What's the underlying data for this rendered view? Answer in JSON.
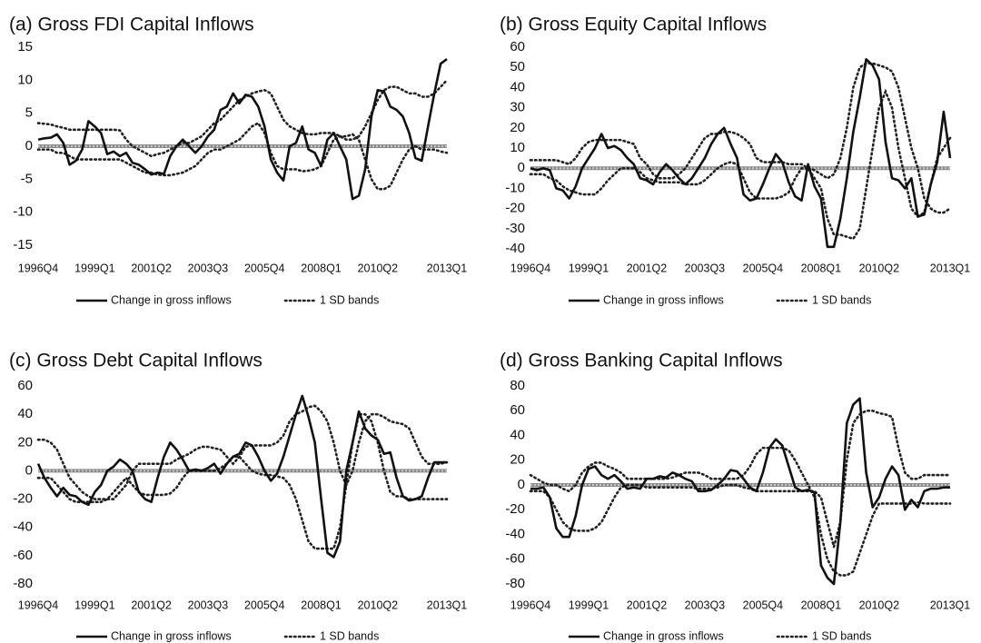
{
  "chart_data": [
    {
      "type": "line",
      "title": "(a) Gross FDI Capital Inflows",
      "categories": [
        "1996Q4",
        null,
        null,
        null,
        null,
        null,
        null,
        null,
        null,
        "1999Q1",
        null,
        null,
        null,
        null,
        null,
        null,
        null,
        null,
        "2001Q2",
        null,
        null,
        null,
        null,
        null,
        null,
        null,
        null,
        "2003Q3",
        null,
        null,
        null,
        null,
        null,
        null,
        null,
        null,
        "2005Q4",
        null,
        null,
        null,
        null,
        null,
        null,
        null,
        null,
        "2008Q1",
        null,
        null,
        null,
        null,
        null,
        null,
        null,
        null,
        "2010Q2",
        null,
        null,
        null,
        null,
        null,
        null,
        null,
        null,
        null,
        null,
        "2013Q1"
      ],
      "ylim": [
        -15,
        15
      ],
      "yticks": [
        -15,
        -10,
        -5,
        0,
        5,
        10,
        15
      ],
      "series": [
        {
          "name": "Change in gross inflows",
          "color": "#111111",
          "values": [
            1,
            1.2,
            1.3,
            1.8,
            0.5,
            -2.8,
            -2.2,
            -0.5,
            3.8,
            3,
            2,
            -1.2,
            -0.8,
            -1.5,
            -1,
            -2.5,
            -2.8,
            -3.5,
            -4.3,
            -4,
            -4.2,
            -1.5,
            0,
            1,
            0,
            -1,
            0,
            1.5,
            2.5,
            5.5,
            6,
            8,
            6.5,
            7.8,
            7.5,
            6,
            3,
            -2,
            -4,
            -5.2,
            0,
            0.5,
            3,
            -0.5,
            -1,
            -3,
            1,
            2,
            0,
            -2,
            -8,
            -7.5,
            -3.5,
            4.5,
            8.5,
            8.3,
            6,
            5.5,
            4.5,
            2,
            -1.8,
            -2.2,
            3,
            8,
            12.5,
            13.2
          ]
        }
      ],
      "bands": {
        "name": "1 SD bands",
        "color": "#222222",
        "lines": [
          [
            3.5,
            3.4,
            3.3,
            3,
            2.8,
            2.5,
            2.5,
            2.5,
            2.5,
            2.5,
            2.5,
            2.5,
            2.5,
            2.4,
            1,
            0,
            -0.5,
            -1,
            -1.5,
            -1.2,
            -1,
            -0.5,
            0,
            0.5,
            0.5,
            1,
            1.5,
            2.5,
            3.5,
            4,
            5,
            6,
            7,
            7.5,
            8,
            8.3,
            8.5,
            8,
            6,
            4,
            3,
            2.5,
            2,
            1.8,
            1.8,
            2,
            2,
            2,
            1.5,
            1,
            1,
            1.5,
            3,
            5,
            7,
            8.5,
            9,
            9,
            8.5,
            8,
            8,
            7.5,
            7.5,
            8,
            9,
            10
          ],
          [
            -0.5,
            -0.5,
            -0.5,
            -1,
            -1,
            -1.5,
            -2,
            -2,
            -2,
            -2,
            -2,
            -2,
            -2,
            -2,
            -2.5,
            -3,
            -3.5,
            -4,
            -4,
            -4.3,
            -4.4,
            -4.4,
            -4.2,
            -4,
            -3.5,
            -3,
            -2,
            -1,
            -0.5,
            -0.5,
            0,
            0.5,
            1,
            2,
            3,
            3.5,
            2,
            -1,
            -3,
            -3.5,
            -3.5,
            -3.5,
            -3.8,
            -3.7,
            -3.5,
            -3,
            -1,
            1,
            1.5,
            1.5,
            1.8,
            1,
            -2,
            -5,
            -6.5,
            -6.5,
            -6,
            -4,
            -2,
            -0.5,
            0,
            -0.5,
            -0.5,
            -0.5,
            -0.8,
            -1
          ]
        ]
      }
    },
    {
      "type": "line",
      "title": "(b) Gross Equity Capital Inflows",
      "categories": [
        "1996Q4",
        null,
        null,
        null,
        null,
        null,
        null,
        null,
        null,
        "1999Q1",
        null,
        null,
        null,
        null,
        null,
        null,
        null,
        null,
        "2001Q2",
        null,
        null,
        null,
        null,
        null,
        null,
        null,
        null,
        "2003Q3",
        null,
        null,
        null,
        null,
        null,
        null,
        null,
        null,
        "2005Q4",
        null,
        null,
        null,
        null,
        null,
        null,
        null,
        null,
        "2008Q1",
        null,
        null,
        null,
        null,
        null,
        null,
        null,
        null,
        "2010Q2",
        null,
        null,
        null,
        null,
        null,
        null,
        null,
        null,
        null,
        null,
        "2013Q1"
      ],
      "ylim": [
        -40,
        60
      ],
      "yticks": [
        -40,
        -30,
        -20,
        -10,
        0,
        10,
        20,
        30,
        40,
        50,
        60
      ],
      "series": [
        {
          "name": "Change in gross inflows",
          "color": "#111111",
          "values": [
            0,
            -1,
            0,
            -1,
            -10,
            -11,
            -15,
            -9,
            0,
            5,
            10,
            17,
            10,
            11,
            9,
            5,
            2,
            -5,
            -6,
            -8,
            -2,
            2,
            -1,
            -5,
            -8,
            -5,
            0,
            5,
            12,
            17,
            20,
            12,
            5,
            -13,
            -16,
            -15,
            -8,
            0,
            7,
            3,
            -7,
            -14,
            -16,
            2,
            -9,
            -15,
            -39,
            -39,
            -25,
            -5,
            18,
            35,
            54,
            51,
            44,
            13,
            -5,
            -6,
            -10,
            -5,
            -24,
            -23,
            -8,
            3,
            28,
            5
          ]
        }
      ],
      "bands": {
        "name": "1 SD bands",
        "color": "#222222",
        "lines": [
          [
            4,
            4,
            4,
            4,
            4,
            3,
            2,
            5,
            10,
            13,
            14,
            14,
            14,
            14,
            14,
            13,
            12,
            5,
            2,
            -3,
            -5,
            -5,
            -5,
            -3,
            0,
            5,
            10,
            15,
            17,
            17,
            18,
            18,
            17,
            15,
            12,
            5,
            3,
            3,
            3,
            3,
            2,
            2,
            2,
            0,
            -1,
            -3,
            -5,
            -3,
            5,
            20,
            40,
            50,
            52,
            52,
            51,
            50,
            48,
            40,
            25,
            10,
            0,
            -15,
            -20,
            -22,
            -22,
            -20
          ],
          [
            -3,
            -3,
            -3,
            -5,
            -6,
            -9,
            -11,
            -12,
            -13,
            -13,
            -13,
            -10,
            -6,
            -3,
            0,
            0,
            0,
            -2,
            -5,
            -6,
            -7,
            -7,
            -7,
            -7,
            -8,
            -8,
            -8,
            -6,
            -3,
            0,
            2,
            3,
            2,
            -5,
            -12,
            -15,
            -15,
            -15,
            -15,
            -14,
            -12,
            -5,
            0,
            0,
            -5,
            -10,
            -25,
            -33,
            -33,
            -34,
            -35,
            -30,
            -10,
            10,
            30,
            38,
            30,
            10,
            -5,
            -20,
            -24,
            -22,
            -8,
            5,
            10,
            15
          ]
        ]
      }
    },
    {
      "type": "line",
      "title": "(c) Gross Debt Capital Inflows",
      "categories": [
        "1996Q4",
        null,
        null,
        null,
        null,
        null,
        null,
        null,
        null,
        "1999Q1",
        null,
        null,
        null,
        null,
        null,
        null,
        null,
        null,
        "2001Q2",
        null,
        null,
        null,
        null,
        null,
        null,
        null,
        null,
        "2003Q3",
        null,
        null,
        null,
        null,
        null,
        null,
        null,
        null,
        "2005Q4",
        null,
        null,
        null,
        null,
        null,
        null,
        null,
        null,
        "2008Q1",
        null,
        null,
        null,
        null,
        null,
        null,
        null,
        null,
        "2010Q2",
        null,
        null,
        null,
        null,
        null,
        null,
        null,
        null,
        null,
        null,
        "2013Q1"
      ],
      "ylim": [
        -80,
        60
      ],
      "yticks": [
        -80,
        -60,
        -40,
        -20,
        0,
        20,
        40,
        60
      ],
      "series": [
        {
          "name": "Change in gross inflows",
          "color": "#111111",
          "values": [
            5,
            -5,
            -12,
            -18,
            -12,
            -17,
            -18,
            -22,
            -24,
            -15,
            -10,
            0,
            3,
            8,
            5,
            0,
            -15,
            -20,
            -22,
            -5,
            10,
            20,
            15,
            8,
            0,
            1,
            0,
            2,
            5,
            -2,
            5,
            10,
            12,
            20,
            18,
            10,
            0,
            -7,
            -2,
            10,
            25,
            40,
            53,
            38,
            20,
            -20,
            -58,
            -61,
            -50,
            0,
            20,
            42,
            30,
            25,
            22,
            12,
            13,
            -5,
            -18,
            -21,
            -20,
            -18,
            -5,
            6,
            6,
            6
          ]
        }
      ],
      "bands": {
        "name": "1 SD bands",
        "color": "#222222",
        "lines": [
          [
            22,
            22,
            20,
            15,
            5,
            -5,
            -10,
            -15,
            -18,
            -20,
            -20,
            -20,
            -20,
            -15,
            -10,
            0,
            5,
            5,
            5,
            5,
            5,
            5,
            8,
            10,
            12,
            15,
            17,
            17,
            16,
            15,
            10,
            5,
            10,
            17,
            18,
            18,
            18,
            18,
            20,
            25,
            35,
            40,
            42,
            45,
            46,
            42,
            35,
            20,
            0,
            -10,
            0,
            20,
            35,
            40,
            40,
            38,
            35,
            34,
            33,
            30,
            20,
            10,
            5,
            5,
            5,
            6
          ],
          [
            -5,
            -5,
            -5,
            -10,
            -15,
            -20,
            -22,
            -22,
            -22,
            -22,
            -22,
            -20,
            -15,
            -10,
            -5,
            -10,
            -15,
            -17,
            -17,
            -17,
            -17,
            -16,
            -12,
            -5,
            0,
            0,
            0,
            0,
            0,
            2,
            5,
            10,
            10,
            5,
            0,
            -2,
            -3,
            -3,
            -4,
            -5,
            -10,
            -20,
            -35,
            -50,
            -55,
            -55,
            -55,
            -55,
            -40,
            -10,
            20,
            40,
            40,
            35,
            20,
            0,
            -15,
            -18,
            -18,
            -20,
            -20,
            -20,
            -20,
            -20,
            -20,
            -20
          ]
        ]
      }
    },
    {
      "type": "line",
      "title": "(d) Gross Banking Capital Inflows",
      "categories": [
        "1996Q4",
        null,
        null,
        null,
        null,
        null,
        null,
        null,
        null,
        "1999Q1",
        null,
        null,
        null,
        null,
        null,
        null,
        null,
        null,
        "2001Q2",
        null,
        null,
        null,
        null,
        null,
        null,
        null,
        null,
        "2003Q3",
        null,
        null,
        null,
        null,
        null,
        null,
        null,
        null,
        "2005Q4",
        null,
        null,
        null,
        null,
        null,
        null,
        null,
        null,
        "2008Q1",
        null,
        null,
        null,
        null,
        null,
        null,
        null,
        null,
        "2010Q2",
        null,
        null,
        null,
        null,
        null,
        null,
        null,
        null,
        null,
        null,
        "2013Q1"
      ],
      "ylim": [
        -80,
        80
      ],
      "yticks": [
        -80,
        -60,
        -40,
        -20,
        0,
        20,
        40,
        60,
        80
      ],
      "series": [
        {
          "name": "Change in gross inflows",
          "color": "#111111",
          "values": [
            -3,
            -3,
            -2,
            -10,
            -35,
            -42,
            -42,
            -25,
            0,
            13,
            15,
            8,
            5,
            8,
            3,
            -3,
            -2,
            -3,
            5,
            5,
            7,
            6,
            10,
            8,
            5,
            3,
            -5,
            -5,
            -4,
            0,
            5,
            12,
            11,
            5,
            -2,
            -5,
            10,
            30,
            37,
            32,
            15,
            -2,
            -5,
            -4,
            -6,
            -65,
            -75,
            -80,
            -30,
            50,
            65,
            70,
            10,
            -18,
            -10,
            5,
            15,
            8,
            -20,
            -12,
            -18,
            -5,
            -3,
            -3,
            -2,
            -2
          ]
        }
      ],
      "bands": {
        "name": "1 SD bands",
        "color": "#222222",
        "lines": [
          [
            8,
            5,
            2,
            0,
            0,
            -3,
            -5,
            0,
            10,
            15,
            18,
            18,
            15,
            13,
            10,
            5,
            5,
            5,
            5,
            5,
            5,
            5,
            6,
            8,
            10,
            10,
            10,
            8,
            5,
            5,
            5,
            5,
            5,
            8,
            15,
            25,
            30,
            30,
            30,
            30,
            28,
            20,
            10,
            0,
            -10,
            -40,
            -60,
            -70,
            -73,
            -73,
            -70,
            -55,
            -40,
            -25,
            -15,
            -15,
            -15,
            -15,
            -15,
            -15,
            -14,
            -15,
            -15,
            -15,
            -15,
            -15
          ],
          [
            -5,
            -5,
            -5,
            -10,
            -20,
            -30,
            -35,
            -37,
            -37,
            -37,
            -35,
            -30,
            -20,
            -10,
            -2,
            0,
            0,
            0,
            -2,
            -2,
            -2,
            -2,
            -2,
            -2,
            -2,
            -2,
            -3,
            -3,
            -3,
            -2,
            0,
            0,
            0,
            -2,
            -3,
            -5,
            -5,
            -5,
            -5,
            -5,
            -5,
            -5,
            -5,
            -5,
            -5,
            -10,
            -30,
            -50,
            -30,
            20,
            50,
            57,
            60,
            60,
            58,
            57,
            55,
            30,
            10,
            5,
            5,
            8,
            8,
            8,
            8,
            8
          ]
        ]
      }
    }
  ]
}
